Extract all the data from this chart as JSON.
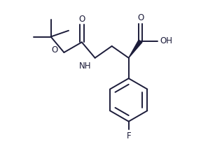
{
  "background_color": "#ffffff",
  "line_color": "#1c1c3a",
  "line_width": 1.4,
  "figsize": [
    2.97,
    2.36
  ],
  "dpi": 100,
  "xlim": [
    0,
    10
  ],
  "ylim": [
    0,
    8
  ]
}
